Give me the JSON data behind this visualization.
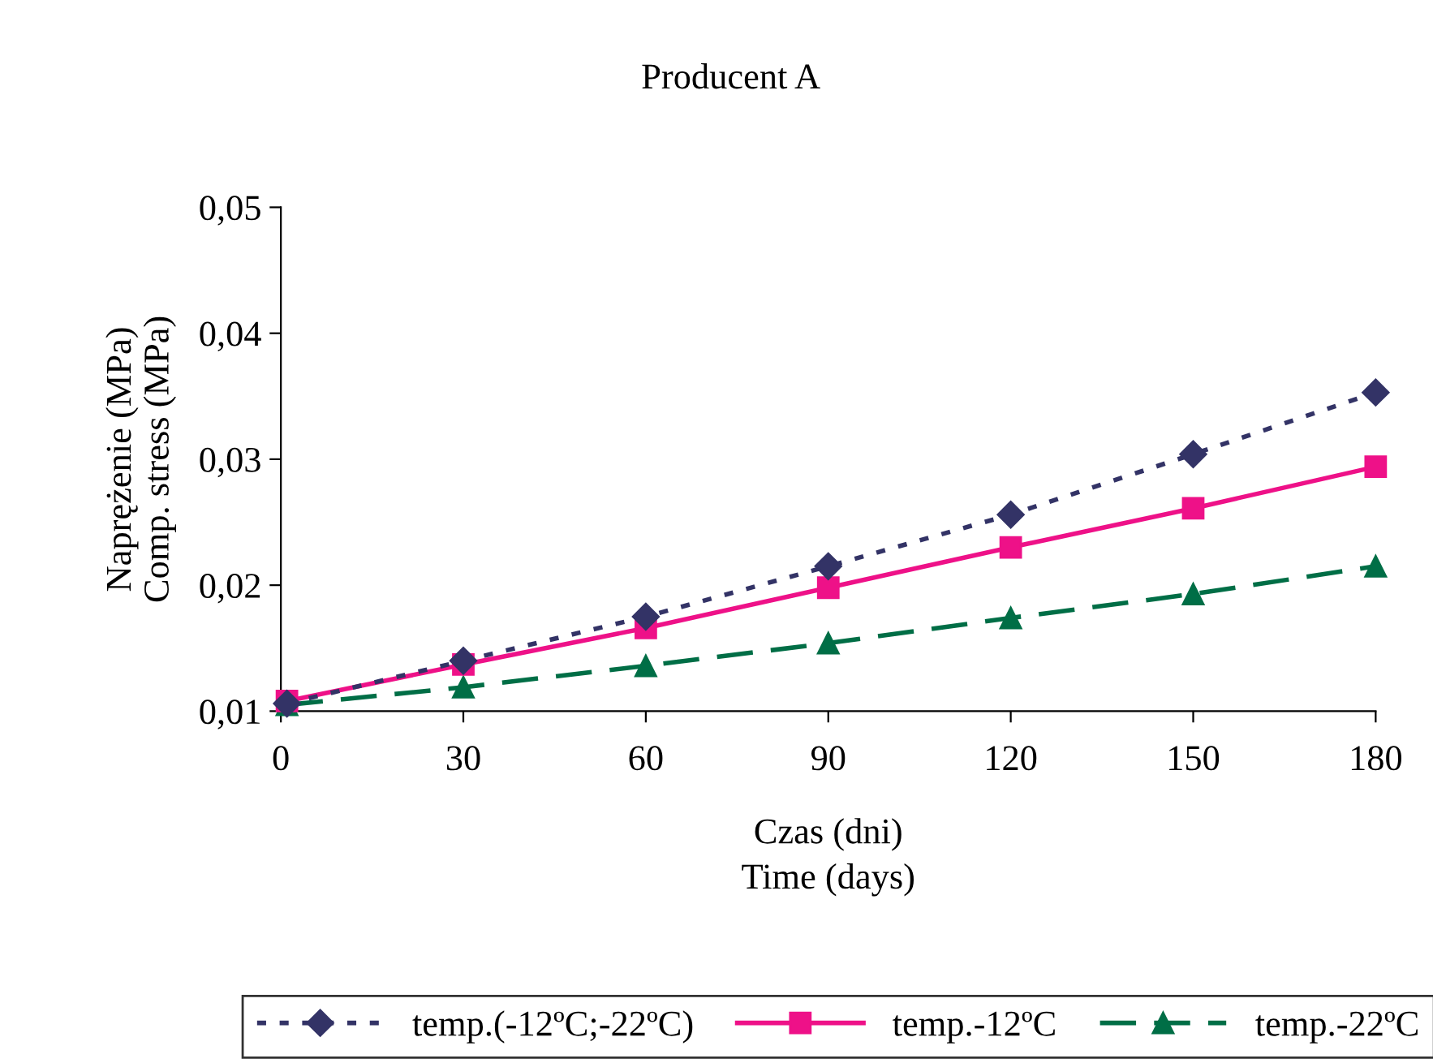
{
  "chart_data": {
    "type": "line",
    "title": "Producent A",
    "xlabel": "Czas (dni)\nTime (days)",
    "ylabel": "Naprężenie (MPa)\nComp. stress (MPa)",
    "x": [
      1,
      30,
      60,
      90,
      120,
      150,
      180
    ],
    "series": [
      {
        "name": "temp.(-12ºC;-22ºC)",
        "color": "#333366",
        "marker": "diamond",
        "line_style": "dotted",
        "values": [
          0.0106,
          0.014,
          0.0175,
          0.0215,
          0.0256,
          0.0304,
          0.0353
        ]
      },
      {
        "name": "temp.-12ºC",
        "color": "#ee1188",
        "marker": "square",
        "line_style": "solid",
        "values": [
          0.0108,
          0.0137,
          0.0166,
          0.0198,
          0.023,
          0.0261,
          0.0294
        ]
      },
      {
        "name": "temp.-22ºC",
        "color": "#006e46",
        "marker": "triangle",
        "line_style": "dashed",
        "values": [
          0.0105,
          0.0119,
          0.0136,
          0.0154,
          0.0174,
          0.0193,
          0.0215
        ]
      }
    ],
    "xlim": [
      0,
      180
    ],
    "xticks": [
      0,
      30,
      60,
      90,
      120,
      150,
      180
    ],
    "ylim": [
      0.01,
      0.05
    ],
    "yticks": [
      {
        "value": 0.01,
        "label": "0,01"
      },
      {
        "value": 0.02,
        "label": "0,02"
      },
      {
        "value": 0.03,
        "label": "0,03"
      },
      {
        "value": 0.04,
        "label": "0,04"
      },
      {
        "value": 0.05,
        "label": "0,05"
      }
    ],
    "grid": false,
    "legend": "bottom"
  }
}
